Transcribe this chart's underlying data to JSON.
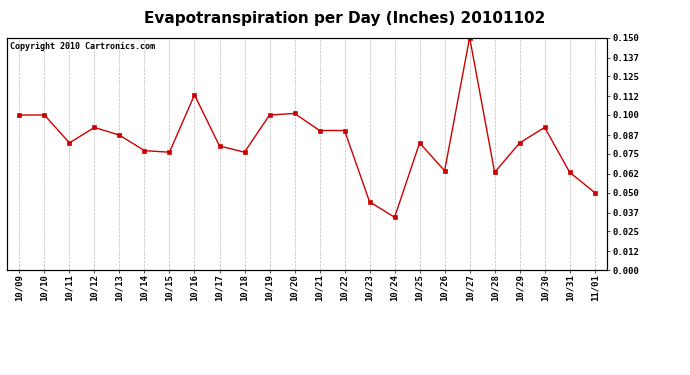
{
  "title": "Evapotranspiration per Day (Inches) 20101102",
  "copyright_text": "Copyright 2010 Cartronics.com",
  "x_labels": [
    "10/09",
    "10/10",
    "10/11",
    "10/12",
    "10/13",
    "10/14",
    "10/15",
    "10/16",
    "10/17",
    "10/18",
    "10/19",
    "10/20",
    "10/21",
    "10/22",
    "10/23",
    "10/24",
    "10/25",
    "10/26",
    "10/27",
    "10/28",
    "10/29",
    "10/30",
    "10/31",
    "11/01"
  ],
  "y_values": [
    0.1,
    0.1,
    0.082,
    0.092,
    0.087,
    0.077,
    0.076,
    0.113,
    0.08,
    0.076,
    0.1,
    0.101,
    0.09,
    0.09,
    0.044,
    0.034,
    0.082,
    0.064,
    0.15,
    0.063,
    0.082,
    0.092,
    0.063,
    0.05
  ],
  "line_color": "#cc0000",
  "marker": "s",
  "marker_size": 2.5,
  "bg_color": "#ffffff",
  "plot_bg_color": "#ffffff",
  "grid_color": "#bbbbbb",
  "y_min": 0.0,
  "y_max": 0.15,
  "y_ticks": [
    0.0,
    0.012,
    0.025,
    0.037,
    0.05,
    0.062,
    0.075,
    0.087,
    0.1,
    0.112,
    0.125,
    0.137,
    0.15
  ],
  "title_fontsize": 11,
  "copyright_fontsize": 6,
  "tick_fontsize": 6.5
}
